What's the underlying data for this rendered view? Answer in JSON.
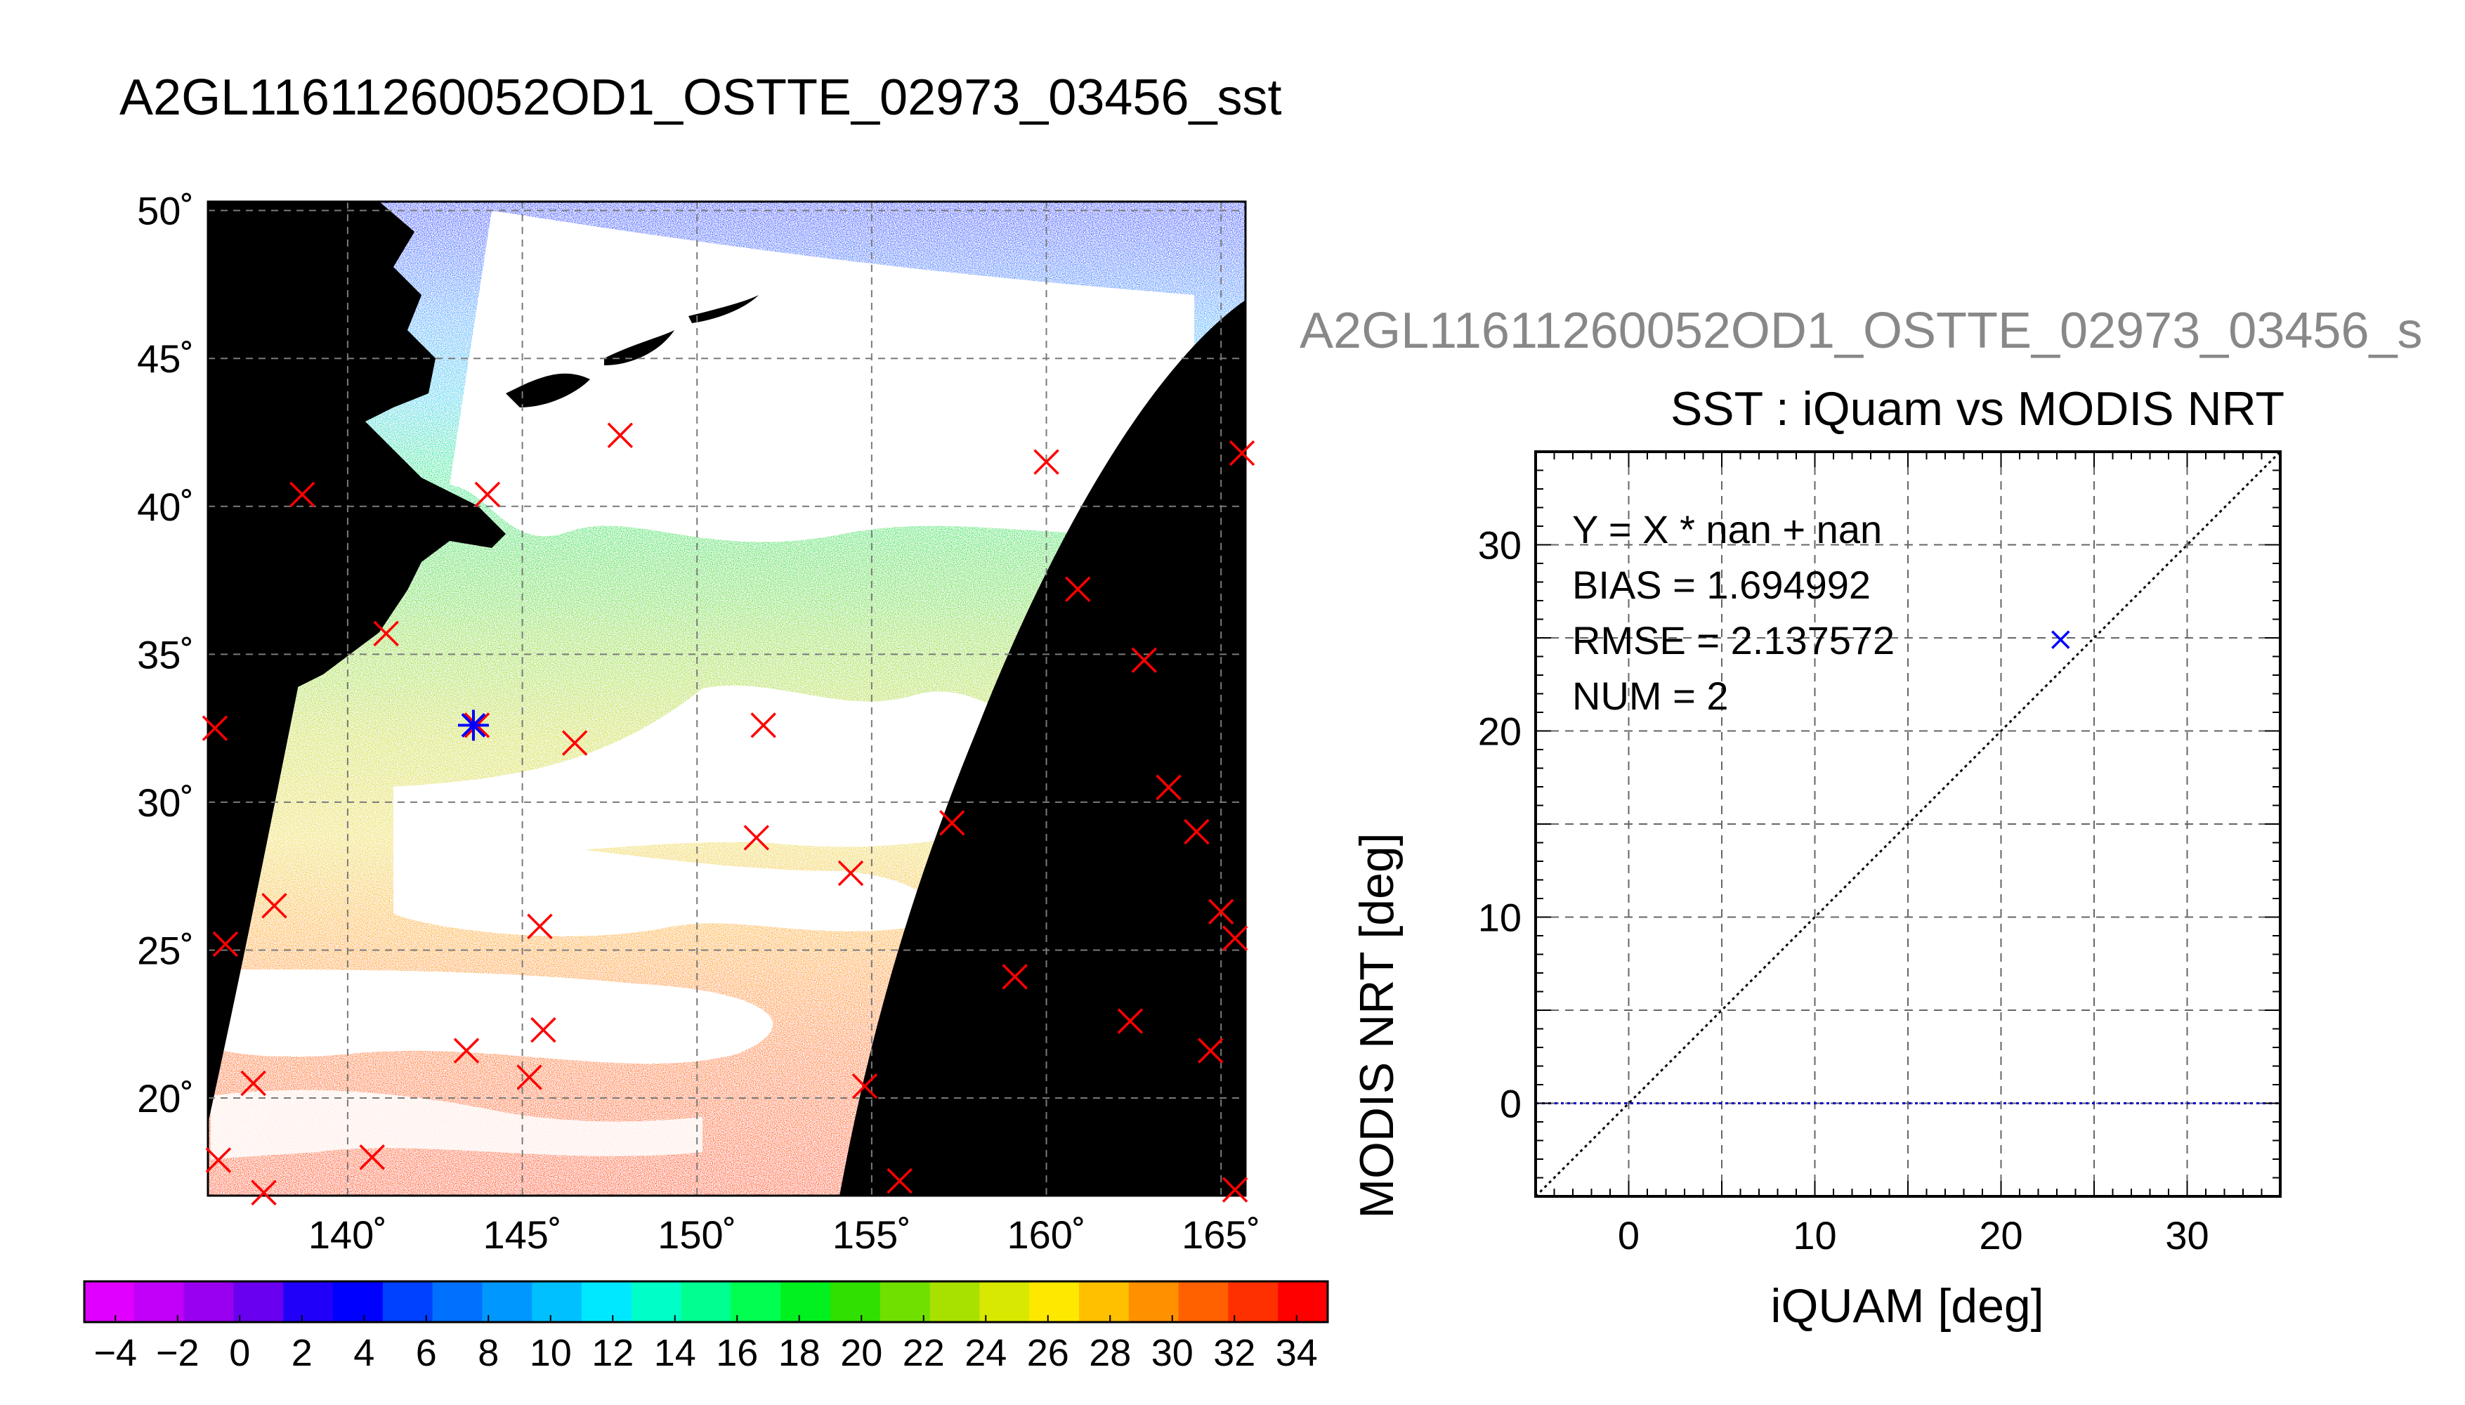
{
  "figure": {
    "main_title": "A2GL11611260052OD1_OSTTE_02973_03456_sst",
    "sub_title": "A2GL11611260052OD1_OSTTE_02973_03456_s"
  },
  "chart_data": [
    {
      "type": "heatmap",
      "title": "A2GL11611260052OD1_OSTTE_02973_03456_sst",
      "subtitle": "",
      "xlabel": "",
      "ylabel": "",
      "x_ticks": [
        "140˚",
        "145˚",
        "150˚",
        "155˚",
        "160˚",
        "165˚"
      ],
      "x_tick_values": [
        140,
        145,
        150,
        155,
        160,
        165
      ],
      "y_ticks": [
        "50˚",
        "45˚",
        "40˚",
        "35˚",
        "30˚",
        "25˚",
        "20˚"
      ],
      "y_tick_values": [
        50,
        45,
        40,
        35,
        30,
        25,
        20
      ],
      "xlim": [
        136,
        165.7
      ],
      "ylim": [
        16.7,
        50.3
      ],
      "grid": true,
      "colorbar": {
        "min": -5,
        "max": 35,
        "tick_labels": [
          "−4",
          "−2",
          "0",
          "2",
          "4",
          "6",
          "8",
          "10",
          "12",
          "14",
          "16",
          "18",
          "20",
          "22",
          "24",
          "26",
          "28",
          "30",
          "32",
          "34"
        ],
        "tick_values": [
          -4,
          -2,
          0,
          2,
          4,
          6,
          8,
          10,
          12,
          14,
          16,
          18,
          20,
          22,
          24,
          26,
          28,
          30,
          32,
          34
        ],
        "colors": [
          "#e000ff",
          "#c000f8",
          "#9a00f0",
          "#6a00f0",
          "#2000f8",
          "#0000ff",
          "#0040ff",
          "#0070ff",
          "#0098ff",
          "#00c0ff",
          "#00e8ff",
          "#00ffc8",
          "#00ff90",
          "#00ff50",
          "#00f020",
          "#30e000",
          "#70e000",
          "#a8e000",
          "#d8e800",
          "#ffe800",
          "#ffc000",
          "#ff9000",
          "#ff6000",
          "#ff3000",
          "#ff0000"
        ]
      },
      "iquam_points_red_x": [
        {
          "lon": 136.2,
          "lat": 32.5
        },
        {
          "lon": 136.5,
          "lat": 25.2
        },
        {
          "lon": 136.3,
          "lat": 17.9
        },
        {
          "lon": 137.3,
          "lat": 20.5
        },
        {
          "lon": 137.9,
          "lat": 26.5
        },
        {
          "lon": 138.7,
          "lat": 40.4
        },
        {
          "lon": 137.6,
          "lat": 16.8
        },
        {
          "lon": 140.7,
          "lat": 18.0
        },
        {
          "lon": 141.1,
          "lat": 35.7
        },
        {
          "lon": 143.4,
          "lat": 21.6
        },
        {
          "lon": 143.7,
          "lat": 32.6
        },
        {
          "lon": 144.0,
          "lat": 40.4
        },
        {
          "lon": 145.2,
          "lat": 20.7
        },
        {
          "lon": 145.5,
          "lat": 25.8
        },
        {
          "lon": 145.6,
          "lat": 22.3
        },
        {
          "lon": 146.5,
          "lat": 32.0
        },
        {
          "lon": 147.8,
          "lat": 42.4
        },
        {
          "lon": 151.7,
          "lat": 28.8
        },
        {
          "lon": 151.9,
          "lat": 32.6
        },
        {
          "lon": 154.4,
          "lat": 27.6
        },
        {
          "lon": 154.8,
          "lat": 20.4
        },
        {
          "lon": 155.8,
          "lat": 17.2
        },
        {
          "lon": 157.3,
          "lat": 29.3
        },
        {
          "lon": 159.1,
          "lat": 24.1
        },
        {
          "lon": 160.0,
          "lat": 41.5
        },
        {
          "lon": 160.9,
          "lat": 37.2
        },
        {
          "lon": 162.4,
          "lat": 22.6
        },
        {
          "lon": 162.8,
          "lat": 34.8
        },
        {
          "lon": 163.5,
          "lat": 30.5
        },
        {
          "lon": 164.3,
          "lat": 29.0
        },
        {
          "lon": 164.7,
          "lat": 21.6
        },
        {
          "lon": 165.0,
          "lat": 26.3
        },
        {
          "lon": 165.4,
          "lat": 25.4
        },
        {
          "lon": 165.6,
          "lat": 41.8
        },
        {
          "lon": 165.4,
          "lat": 16.9
        }
      ],
      "matched_points_blue_star": [
        {
          "lon": 143.6,
          "lat": 32.6
        }
      ]
    },
    {
      "type": "scatter",
      "title": "SST : iQuam vs MODIS NRT",
      "xlabel": "iQUAM [deg]",
      "ylabel": "MODIS NRT [deg]",
      "xlim": [
        -5,
        35
      ],
      "ylim": [
        -5,
        35
      ],
      "x_ticks": [
        0,
        10,
        20,
        30
      ],
      "y_ticks": [
        0,
        10,
        20,
        30
      ],
      "x_tick_labels": [
        "0",
        "10",
        "20",
        "30"
      ],
      "y_tick_labels": [
        "0",
        "10",
        "20",
        "30"
      ],
      "grid": true,
      "stats": [
        "Y = X * nan + nan",
        "BIAS = 1.694992",
        "RMSE = 2.137572",
        "NUM = 2"
      ],
      "series": [
        {
          "marker": "x",
          "color": "#0000ff",
          "points": [
            {
              "x": 23.2,
              "y": 24.9
            }
          ]
        }
      ],
      "reference_lines": [
        {
          "kind": "one_to_one",
          "style": "dotted",
          "color": "#000000"
        },
        {
          "kind": "horizontal",
          "y": 0,
          "style": "dotted",
          "color": "#0000cc"
        }
      ]
    }
  ]
}
